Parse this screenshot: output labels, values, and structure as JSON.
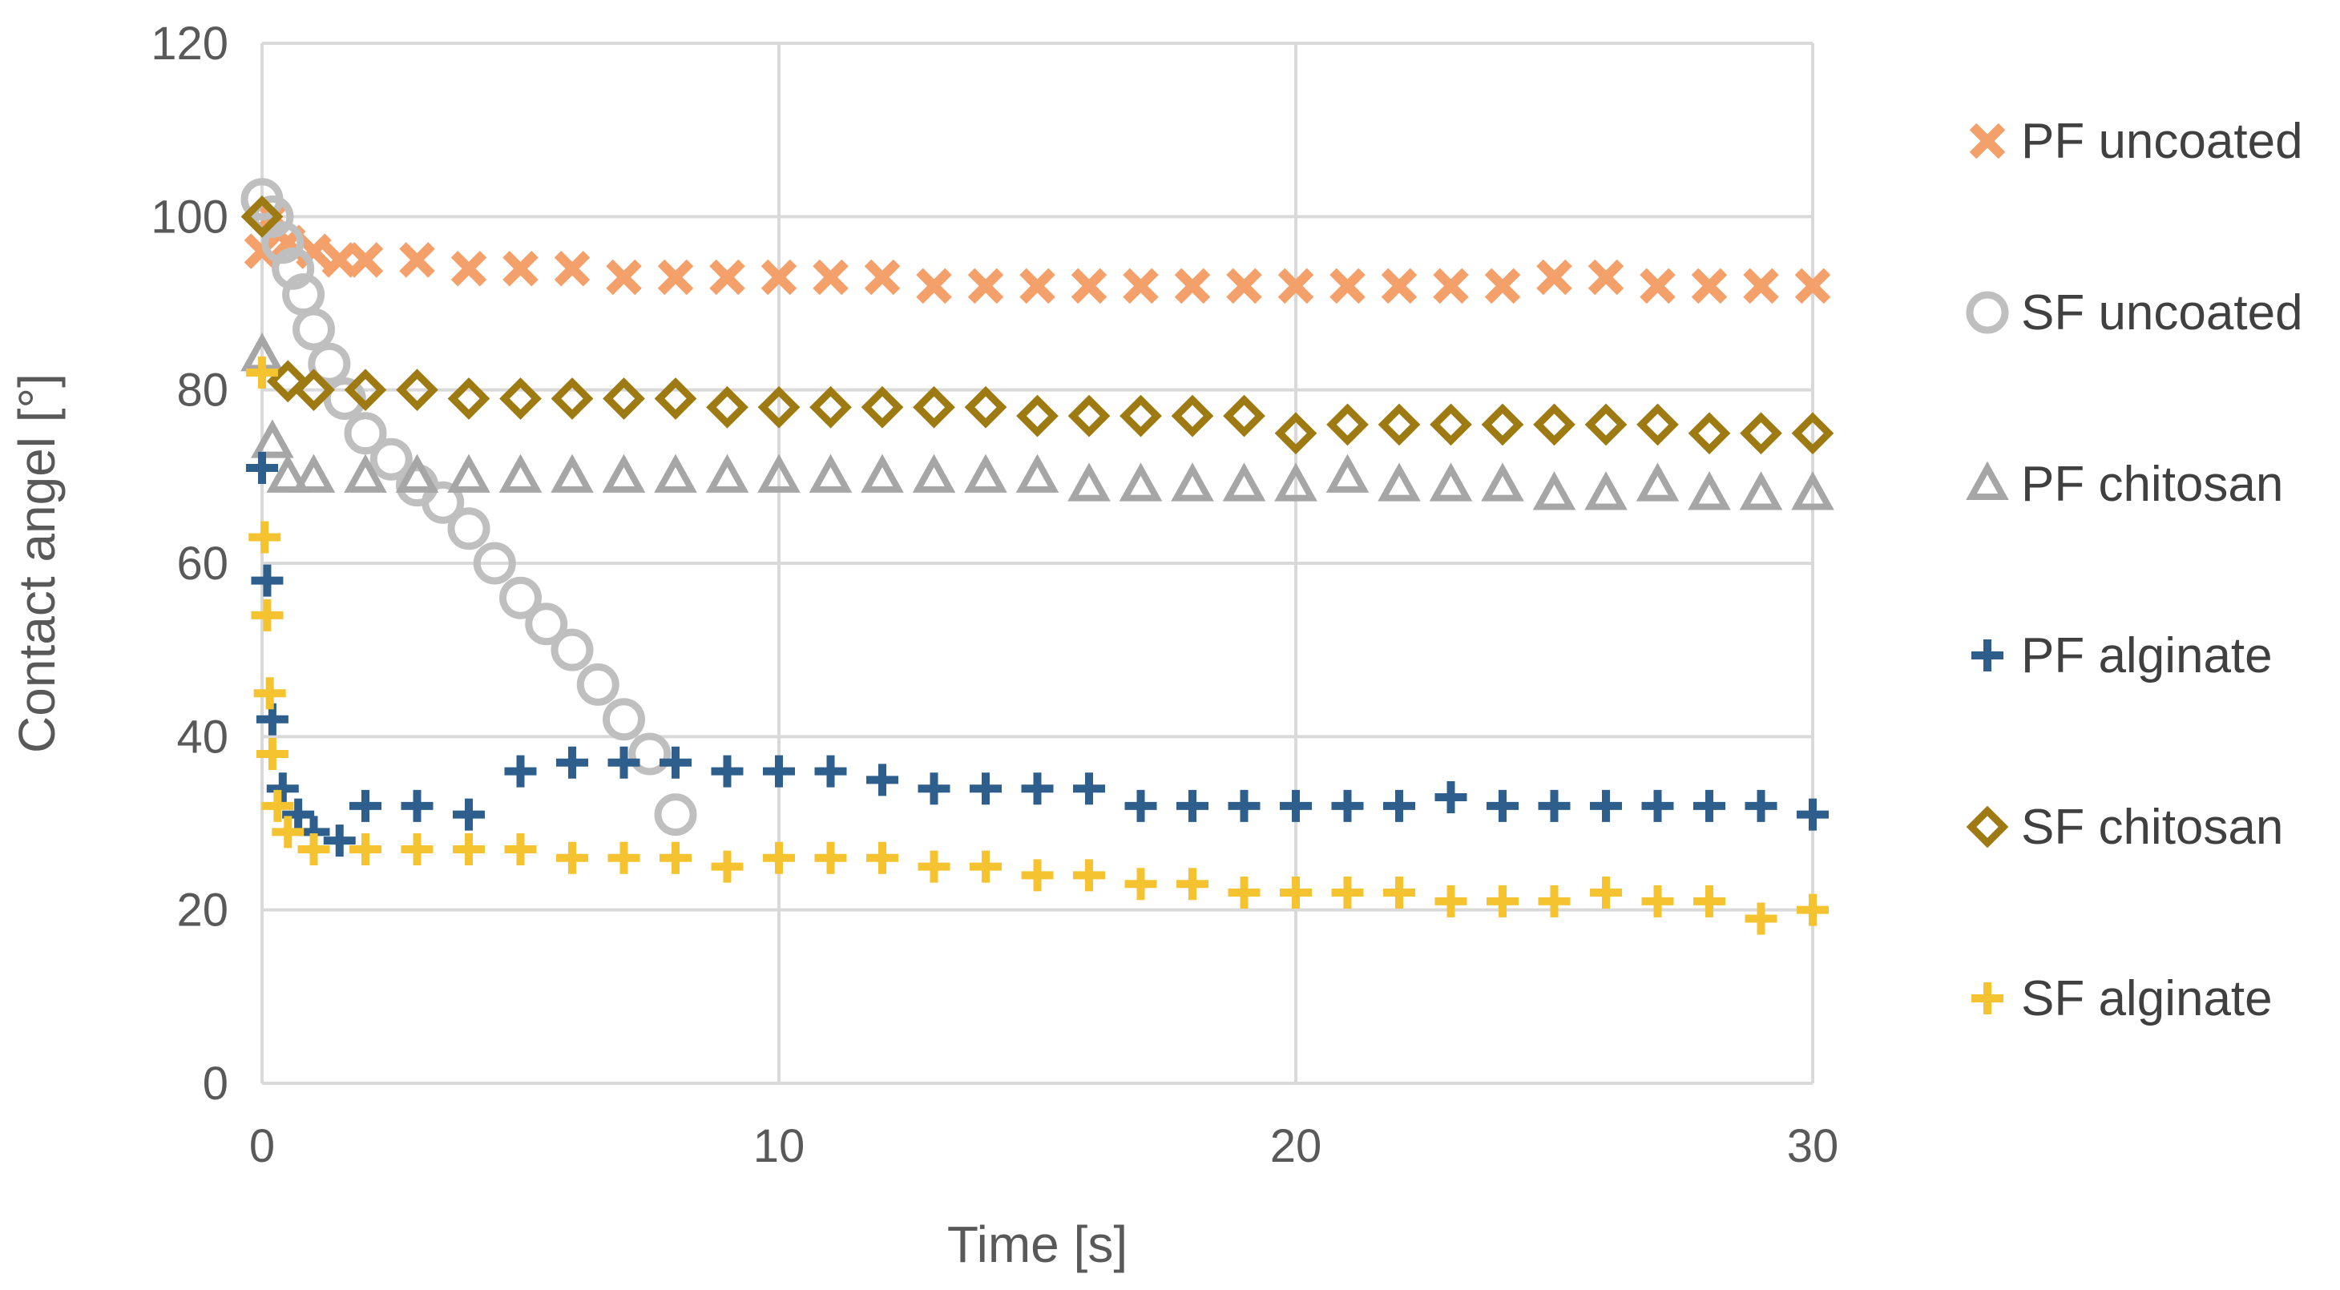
{
  "chart_data": {
    "type": "scatter",
    "title": "",
    "xlabel": "Time [s]",
    "ylabel": "Contact angel [°]",
    "xlim": [
      0,
      30
    ],
    "ylim": [
      0,
      120
    ],
    "xticks": [
      0,
      10,
      20,
      30
    ],
    "yticks": [
      0,
      20,
      40,
      60,
      80,
      100,
      120
    ],
    "grid": true,
    "legend_position": "right",
    "series": [
      {
        "name": "PF uncoated",
        "marker": "x",
        "color": "#F4A06A",
        "x": [
          0,
          0.2,
          0.5,
          1,
          1.5,
          2,
          3,
          4,
          5,
          6,
          7,
          8,
          9,
          10,
          11,
          12,
          13,
          14,
          15,
          16,
          17,
          18,
          19,
          20,
          21,
          22,
          23,
          24,
          25,
          26,
          27,
          28,
          29,
          30
        ],
        "y": [
          96,
          100,
          97,
          96,
          95,
          95,
          95,
          94,
          94,
          94,
          93,
          93,
          93,
          93,
          93,
          93,
          92,
          92,
          92,
          92,
          92,
          92,
          92,
          92,
          92,
          92,
          92,
          92,
          93,
          93,
          92,
          92,
          92,
          92
        ]
      },
      {
        "name": "SF uncoated",
        "marker": "o",
        "color": "#BFBFBF",
        "x": [
          0,
          0.2,
          0.4,
          0.6,
          0.8,
          1,
          1.3,
          1.6,
          2,
          2.5,
          3,
          3.5,
          4,
          4.5,
          5,
          5.5,
          6,
          6.5,
          7,
          7.5,
          8
        ],
        "y": [
          102,
          100,
          97,
          94,
          91,
          87,
          83,
          79,
          75,
          72,
          69,
          67,
          64,
          60,
          56,
          53,
          50,
          46,
          42,
          38,
          31
        ]
      },
      {
        "name": "PF chitosan",
        "marker": "triangle",
        "color": "#A6A6A6",
        "x": [
          0,
          0.2,
          0.5,
          1,
          2,
          3,
          4,
          5,
          6,
          7,
          8,
          9,
          10,
          11,
          12,
          13,
          14,
          15,
          16,
          17,
          18,
          19,
          20,
          21,
          22,
          23,
          24,
          25,
          26,
          27,
          28,
          29,
          30
        ],
        "y": [
          84,
          74,
          70,
          70,
          70,
          70,
          70,
          70,
          70,
          70,
          70,
          70,
          70,
          70,
          70,
          70,
          70,
          70,
          69,
          69,
          69,
          69,
          69,
          70,
          69,
          69,
          69,
          68,
          68,
          69,
          68,
          68,
          68
        ]
      },
      {
        "name": "PF alginate",
        "marker": "plus",
        "color": "#2E5F8C",
        "x": [
          0,
          0.1,
          0.2,
          0.4,
          0.7,
          1,
          1.5,
          2,
          3,
          4,
          5,
          6,
          7,
          8,
          9,
          10,
          11,
          12,
          13,
          14,
          15,
          16,
          17,
          18,
          19,
          20,
          21,
          22,
          23,
          24,
          25,
          26,
          27,
          28,
          29,
          30
        ],
        "y": [
          71,
          58,
          42,
          34,
          31,
          29,
          28,
          32,
          32,
          31,
          36,
          37,
          37,
          37,
          36,
          36,
          36,
          35,
          34,
          34,
          34,
          34,
          32,
          32,
          32,
          32,
          32,
          32,
          33,
          32,
          32,
          32,
          32,
          32,
          32,
          31
        ]
      },
      {
        "name": "SF chitosan",
        "marker": "diamond",
        "color": "#9E7A12",
        "x": [
          0,
          0.5,
          1,
          2,
          3,
          4,
          5,
          6,
          7,
          8,
          9,
          10,
          11,
          12,
          13,
          14,
          15,
          16,
          17,
          18,
          19,
          20,
          21,
          22,
          23,
          24,
          25,
          26,
          27,
          28,
          29,
          30
        ],
        "y": [
          100,
          81,
          80,
          80,
          80,
          79,
          79,
          79,
          79,
          79,
          78,
          78,
          78,
          78,
          78,
          78,
          77,
          77,
          77,
          77,
          77,
          75,
          76,
          76,
          76,
          76,
          76,
          76,
          76,
          75,
          75,
          75
        ]
      },
      {
        "name": "SF alginate",
        "marker": "plus",
        "color": "#F5C330",
        "x": [
          0,
          0.05,
          0.1,
          0.15,
          0.2,
          0.3,
          0.5,
          1,
          2,
          3,
          4,
          5,
          6,
          7,
          8,
          9,
          10,
          11,
          12,
          13,
          14,
          15,
          16,
          17,
          18,
          19,
          20,
          21,
          22,
          23,
          24,
          25,
          26,
          27,
          28,
          29,
          30
        ],
        "y": [
          82,
          63,
          54,
          45,
          38,
          32,
          29,
          27,
          27,
          27,
          27,
          27,
          26,
          26,
          26,
          25,
          26,
          26,
          26,
          25,
          25,
          24,
          24,
          23,
          23,
          22,
          22,
          22,
          22,
          21,
          21,
          21,
          22,
          21,
          21,
          19,
          20
        ]
      }
    ]
  }
}
